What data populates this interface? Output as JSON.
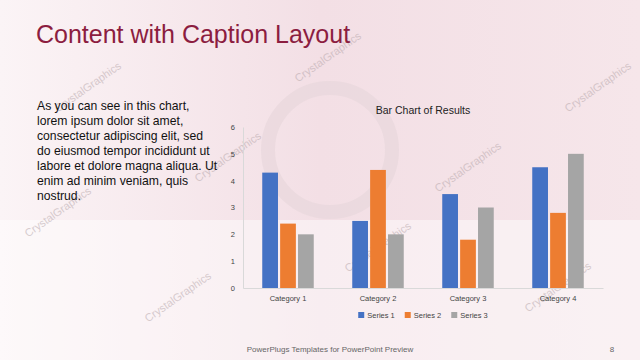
{
  "slide": {
    "title": "Content with Caption Layout",
    "caption_lines": [
      "As you can see in this chart,",
      "lorem ipsum dolor sit amet,",
      "consectetur adipiscing elit, sed",
      "do eiusmod tempor incididunt ut",
      "labore et dolore magna aliqua. Ut",
      "enim ad minim veniam, quis",
      "nostrud."
    ],
    "footer": "PowerPlugs Templates for PowerPoint Preview",
    "page_number": "8",
    "watermark": "CrystalGraphics"
  },
  "chart_data": {
    "type": "bar",
    "title": "Bar Chart of Results",
    "categories": [
      "Category 1",
      "Category 2",
      "Category 3",
      "Category 4"
    ],
    "series": [
      {
        "name": "Series 1",
        "color": "#4472c4",
        "values": [
          4.3,
          2.5,
          3.5,
          4.5
        ]
      },
      {
        "name": "Series 2",
        "color": "#ed7d31",
        "values": [
          2.4,
          4.4,
          1.8,
          2.8
        ]
      },
      {
        "name": "Series 3",
        "color": "#a5a5a5",
        "values": [
          2,
          2,
          3,
          5
        ]
      }
    ],
    "ylim": [
      0,
      6
    ],
    "yticks": [
      0,
      1,
      2,
      3,
      4,
      5,
      6
    ],
    "grid": false,
    "legend": "bottom"
  }
}
